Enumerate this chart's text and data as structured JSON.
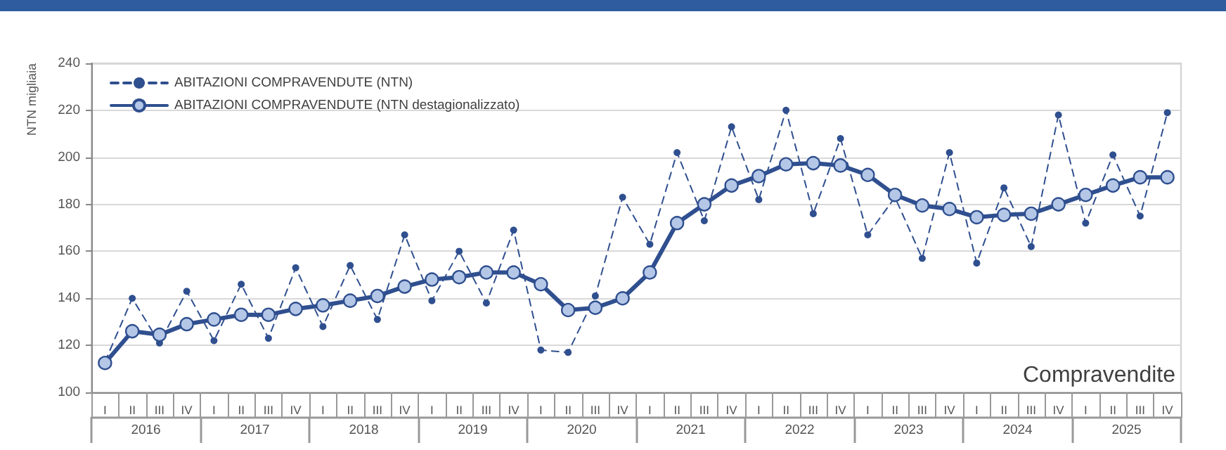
{
  "chart_data": {
    "type": "line",
    "ylabel": "NTN migliaia",
    "categories": [
      "I",
      "II",
      "III",
      "IV",
      "I",
      "II",
      "III",
      "IV",
      "I",
      "II",
      "III",
      "IV",
      "I",
      "II",
      "III",
      "IV",
      "I",
      "II",
      "III",
      "IV",
      "I",
      "II",
      "III",
      "IV",
      "I",
      "II",
      "III",
      "IV",
      "I",
      "II",
      "III",
      "IV",
      "I",
      "II",
      "III",
      "IV",
      "I",
      "II",
      "III",
      "IV"
    ],
    "series": [
      {
        "name": "ABITAZIONI COMPRAVENDUTE (NTN)",
        "color": "#2f4f8f",
        "line_style": "dashed",
        "marker": "circle",
        "values": [
          113,
          140,
          121,
          143,
          122,
          146,
          123,
          153,
          128,
          154,
          131,
          167,
          139,
          160,
          138,
          169,
          118,
          117,
          141,
          183,
          163,
          202,
          173,
          213,
          182,
          220,
          176,
          208,
          167,
          183,
          157,
          202,
          155,
          187,
          162,
          218,
          172,
          201,
          175,
          219
        ]
      },
      {
        "name": "ABITAZIONI COMPRAVENDUTE (NTN destagionalizzato)",
        "color": "#2f4f8f",
        "line_style": "solid",
        "marker": "circle",
        "values": [
          112.5,
          126,
          124.5,
          129,
          131,
          133,
          133,
          135.5,
          137,
          139,
          141,
          145,
          148,
          149,
          151,
          151,
          146,
          135,
          136,
          140,
          151,
          172,
          180,
          188,
          192,
          197,
          197.5,
          196.5,
          192.5,
          184,
          179.5,
          178,
          174.5,
          175.5,
          176,
          180,
          184,
          188,
          191.5,
          191.5
        ]
      }
    ],
    "ylim": [
      100,
      240
    ],
    "yticks": [
      100,
      120,
      140,
      160,
      180,
      200,
      220,
      240
    ],
    "grid": "y",
    "legend": "top left",
    "annotations": [
      "Compravendite",
      "2016",
      "2017",
      "2018",
      "2019",
      "2020",
      "2021",
      "2022",
      "2023",
      "2024",
      "2025"
    ]
  }
}
